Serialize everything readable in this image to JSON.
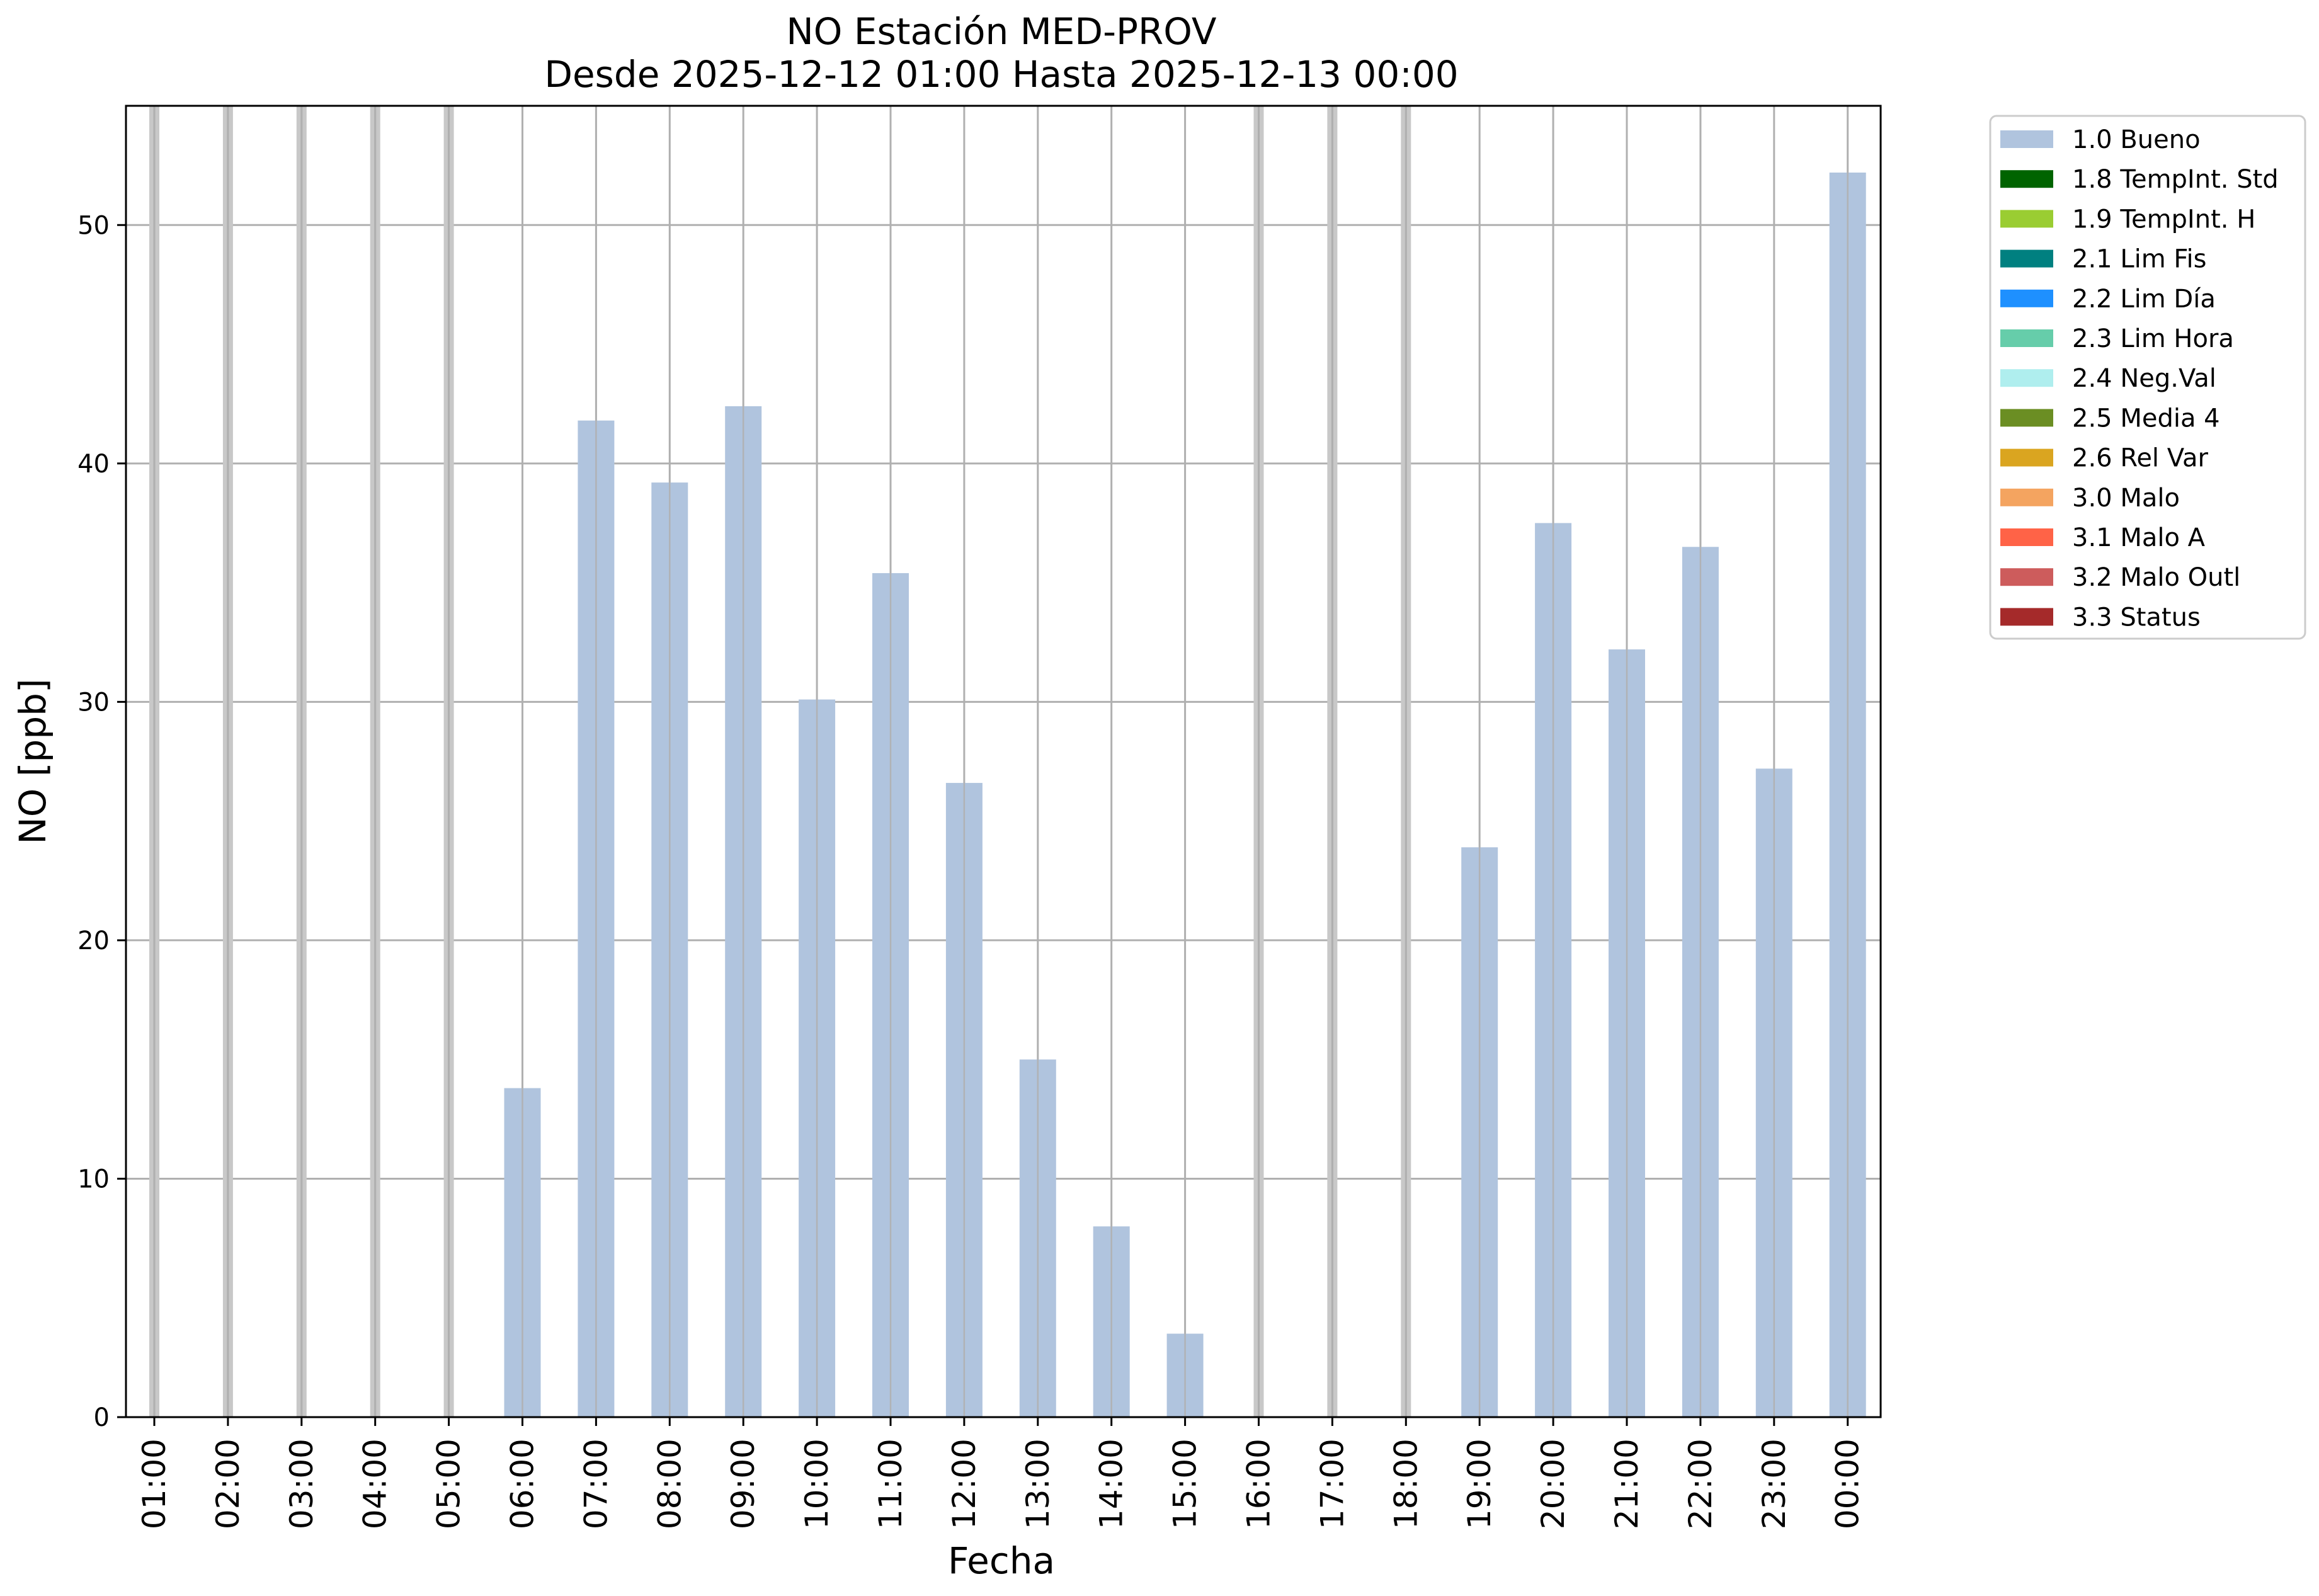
{
  "chart_data": {
    "type": "bar",
    "title": "NO Estación MED-PROV",
    "subtitle": "Desde 2025-12-12 01:00 Hasta 2025-12-13 00:00",
    "xlabel": "Fecha",
    "ylabel": "NO [ppb]",
    "ylim": [
      0,
      55
    ],
    "yticks": [
      0,
      10,
      20,
      30,
      40,
      50
    ],
    "grid": true,
    "legend_position": "outside-top-right",
    "categories": [
      "01:00",
      "02:00",
      "03:00",
      "04:00",
      "05:00",
      "06:00",
      "07:00",
      "08:00",
      "09:00",
      "10:00",
      "11:00",
      "12:00",
      "13:00",
      "14:00",
      "15:00",
      "16:00",
      "17:00",
      "18:00",
      "19:00",
      "20:00",
      "21:00",
      "22:00",
      "23:00",
      "00:00"
    ],
    "series": [
      {
        "name": "1.0 Bueno",
        "color": "#b0c4de",
        "values": [
          null,
          null,
          null,
          null,
          null,
          13.8,
          41.8,
          39.2,
          42.4,
          30.1,
          35.4,
          26.6,
          15.0,
          8.0,
          3.5,
          null,
          null,
          null,
          23.9,
          37.5,
          32.2,
          36.5,
          27.2,
          52.2
        ]
      }
    ],
    "legend": [
      {
        "label": "1.0 Bueno",
        "color": "#b0c4de"
      },
      {
        "label": "1.8 TempInt. Std",
        "color": "#006400"
      },
      {
        "label": "1.9 TempInt. H",
        "color": "#9acd32"
      },
      {
        "label": "2.1 Lim Fis",
        "color": "#008080"
      },
      {
        "label": "2.2 Lim Día",
        "color": "#1e90ff"
      },
      {
        "label": "2.3 Lim Hora",
        "color": "#66cdaa"
      },
      {
        "label": "2.4 Neg.Val",
        "color": "#afeeee"
      },
      {
        "label": "2.5 Media 4",
        "color": "#6b8e23"
      },
      {
        "label": "2.6 Rel Var",
        "color": "#daa520"
      },
      {
        "label": "3.0 Malo",
        "color": "#f4a460"
      },
      {
        "label": "3.1 Malo A",
        "color": "#ff6347"
      },
      {
        "label": "3.2 Malo Outl",
        "color": "#cd5c5c"
      },
      {
        "label": "3.3 Status",
        "color": "#a52a2a"
      }
    ],
    "missing_marker_color": "#c8c8c8"
  }
}
